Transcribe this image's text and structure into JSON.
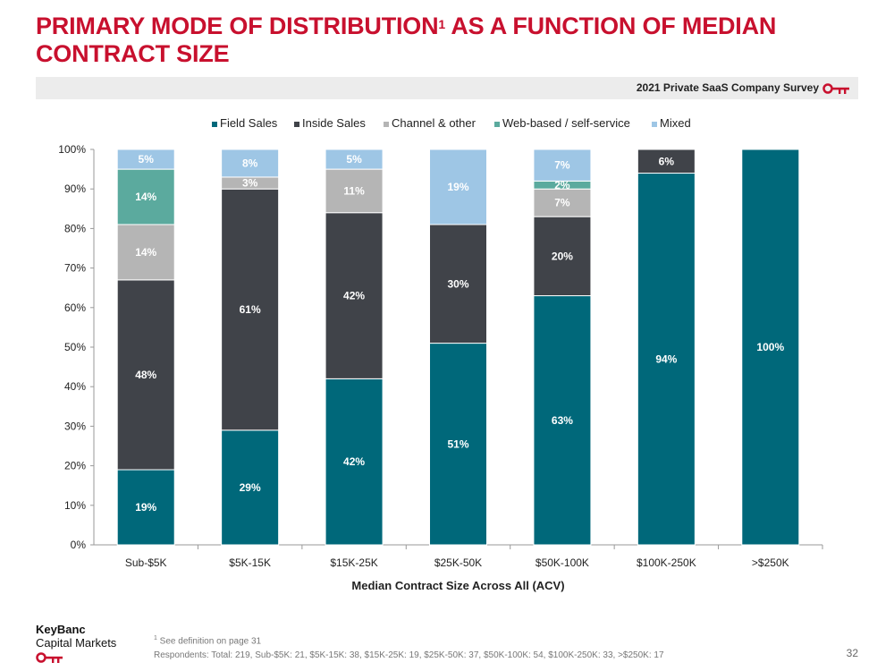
{
  "header": {
    "title_part1": "PRIMARY MODE OF DISTRIBUTION",
    "title_sup": "1",
    "title_part2": " AS A FUNCTION OF MEDIAN CONTRACT SIZE",
    "survey_label": "2021 Private SaaS Company Survey"
  },
  "colors": {
    "brand_red": "#c8102e",
    "field_sales": "#00687a",
    "inside_sales": "#404349",
    "channel_other": "#b5b5b5",
    "web_based": "#5baa9e",
    "mixed": "#9ec6e5"
  },
  "chart_data": {
    "type": "bar",
    "stacked": true,
    "categories": [
      "Sub-$5K",
      "$5K-15K",
      "$15K-25K",
      "$25K-50K",
      "$50K-100K",
      "$100K-250K",
      ">$250K"
    ],
    "series": [
      {
        "name": "Field Sales",
        "color": "#00687a",
        "values": [
          19,
          29,
          42,
          51,
          63,
          94,
          100
        ]
      },
      {
        "name": "Inside Sales",
        "color": "#404349",
        "values": [
          48,
          61,
          42,
          30,
          20,
          6,
          0
        ]
      },
      {
        "name": "Channel & other",
        "color": "#b5b5b5",
        "values": [
          14,
          3,
          11,
          0,
          7,
          0,
          0
        ]
      },
      {
        "name": "Web-based / self-service",
        "color": "#5baa9e",
        "values": [
          14,
          0,
          0,
          0,
          2,
          0,
          0
        ]
      },
      {
        "name": "Mixed",
        "color": "#9ec6e5",
        "values": [
          5,
          8,
          5,
          19,
          7,
          0,
          0
        ]
      }
    ],
    "data_labels": [
      [
        "19%",
        "48%",
        "14%",
        "14%",
        "5%"
      ],
      [
        "29%",
        "61%",
        "3%",
        "",
        "8%"
      ],
      [
        "42%",
        "42%",
        "11%",
        "",
        "5%"
      ],
      [
        "51%",
        "30%",
        "",
        "",
        "19%"
      ],
      [
        "63%",
        "20%",
        "7%",
        "2%",
        "7%"
      ],
      [
        "94%",
        "6%",
        "",
        "",
        ""
      ],
      [
        "100%",
        "",
        "",
        "",
        ""
      ]
    ],
    "y_ticks": [
      "0%",
      "10%",
      "20%",
      "30%",
      "40%",
      "50%",
      "60%",
      "70%",
      "80%",
      "90%",
      "100%"
    ],
    "ylim": [
      0,
      100
    ],
    "xlabel": "Median Contract Size Across All (ACV)",
    "ylabel": "",
    "legend_position": "top"
  },
  "footer": {
    "brand_line1": "KeyBanc",
    "brand_line2": "Capital Markets",
    "footnote_sup": "1",
    "footnote_text": " See definition on page 31",
    "respondents": "Respondents: Total: 219, Sub-$5K: 21, $5K-15K: 38, $15K-25K: 19, $25K-50K: 37, $50K-100K: 54, $100K-250K: 33, >$250K: 17",
    "page_number": "32"
  }
}
